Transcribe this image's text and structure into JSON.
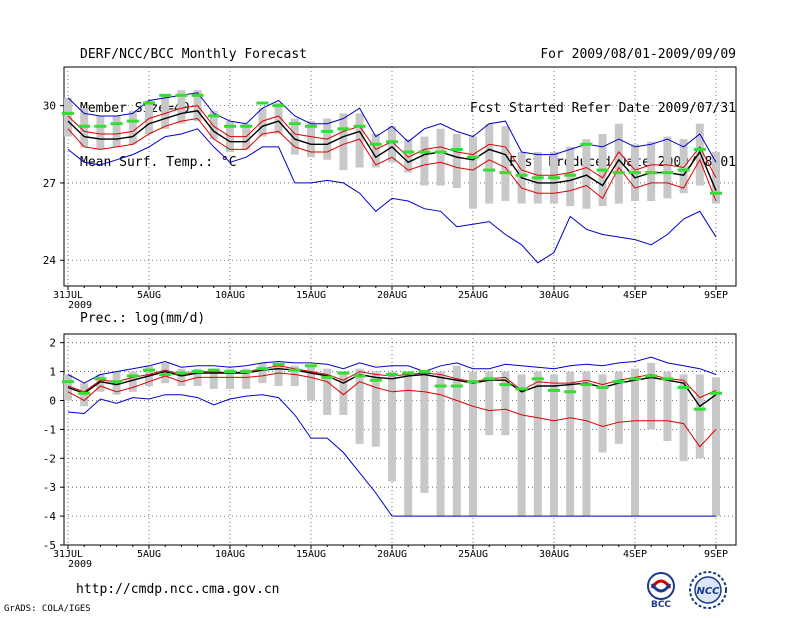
{
  "header": {
    "title": "DERF/NCC/BCC Monthly Forecast",
    "member": "Member Size=40",
    "variable": "Mean Surf. Temp.: °C",
    "period": "For 2009/08/01-2009/09/09",
    "started": "Fcst Started Refer Date 2009/07/31",
    "produced": "Fcst Produced Date 2009/08/01"
  },
  "footer": {
    "url": "http://cmdp.ncc.cma.gov.cn",
    "credit": "GrADS: COLA/IGES",
    "logo1_text": "BCC",
    "logo2_text": "NCC"
  },
  "chart_data": [
    {
      "id": "temp",
      "type": "line",
      "title": "Mean Surf. Temp.: °C",
      "ylim": [
        23,
        31.5
      ],
      "yticks": [
        24,
        27,
        30
      ],
      "xlabels": [
        "31JUL",
        "5AUG",
        "10AUG",
        "15AUG",
        "20AUG",
        "25AUG",
        "30AUG",
        "4SEP",
        "9SEP"
      ],
      "xlabel_sub": "2009",
      "days": 41,
      "series": [
        {
          "name": "max",
          "color": "#0000cc",
          "values": [
            30.3,
            29.7,
            29.6,
            29.6,
            29.7,
            30.2,
            30.3,
            30.4,
            30.5,
            29.7,
            29.4,
            29.3,
            29.9,
            30.2,
            29.6,
            29.3,
            29.3,
            29.5,
            29.9,
            28.8,
            29.2,
            28.6,
            29.1,
            29.3,
            29.0,
            28.8,
            29.3,
            29.4,
            28.2,
            28.1,
            28.1,
            28.3,
            28.5,
            28.4,
            28.7,
            28.4,
            28.5,
            28.7,
            28.4,
            28.9,
            27.8
          ]
        },
        {
          "name": "upper",
          "color": "#dd0000",
          "values": [
            29.6,
            29.0,
            28.9,
            28.9,
            29.0,
            29.5,
            29.7,
            29.9,
            30.0,
            29.2,
            28.8,
            28.8,
            29.4,
            29.6,
            28.9,
            28.8,
            28.7,
            29.0,
            29.2,
            28.3,
            28.6,
            28.0,
            28.3,
            28.4,
            28.2,
            28.1,
            28.5,
            28.4,
            27.5,
            27.3,
            27.3,
            27.4,
            27.6,
            27.2,
            28.2,
            27.5,
            27.7,
            27.7,
            27.6,
            28.4,
            27.2
          ]
        },
        {
          "name": "mean",
          "color": "#000000",
          "values": [
            29.4,
            28.8,
            28.7,
            28.7,
            28.8,
            29.3,
            29.5,
            29.7,
            29.8,
            29.0,
            28.6,
            28.6,
            29.2,
            29.4,
            28.7,
            28.5,
            28.5,
            28.8,
            29.0,
            28.0,
            28.4,
            27.8,
            28.1,
            28.2,
            28.0,
            27.9,
            28.3,
            28.1,
            27.2,
            27.0,
            27.0,
            27.1,
            27.3,
            26.9,
            27.9,
            27.2,
            27.4,
            27.4,
            27.3,
            28.2,
            26.7
          ]
        },
        {
          "name": "lower",
          "color": "#dd0000",
          "values": [
            29.1,
            28.4,
            28.3,
            28.4,
            28.5,
            28.9,
            29.2,
            29.4,
            29.5,
            28.7,
            28.3,
            28.3,
            28.9,
            29.0,
            28.4,
            28.2,
            28.2,
            28.5,
            28.7,
            27.7,
            28.0,
            27.5,
            27.7,
            27.8,
            27.6,
            27.5,
            27.9,
            27.6,
            26.8,
            26.6,
            26.6,
            26.7,
            26.9,
            26.4,
            27.6,
            26.8,
            27.0,
            27.0,
            26.8,
            27.9,
            26.3
          ]
        },
        {
          "name": "min",
          "color": "#0000cc",
          "values": [
            28.3,
            27.8,
            27.7,
            27.9,
            28.1,
            28.4,
            28.8,
            28.9,
            29.1,
            28.4,
            27.8,
            28.0,
            28.4,
            28.4,
            27.0,
            27.0,
            27.1,
            27.0,
            26.6,
            25.9,
            26.4,
            26.3,
            26.0,
            25.9,
            25.3,
            25.4,
            25.5,
            25.0,
            24.6,
            23.9,
            24.3,
            25.7,
            25.2,
            25.0,
            24.9,
            24.8,
            24.6,
            25.0,
            25.6,
            25.9,
            24.9
          ]
        }
      ],
      "box_low": [
        28.8,
        28.4,
        28.3,
        28.4,
        28.5,
        28.9,
        29.1,
        29.3,
        29.4,
        28.7,
        28.2,
        28.3,
        28.8,
        28.9,
        28.1,
        28.0,
        27.9,
        27.5,
        27.6,
        27.6,
        27.8,
        27.4,
        26.9,
        26.9,
        26.8,
        26.0,
        26.2,
        26.3,
        26.2,
        26.2,
        26.2,
        26.1,
        26.0,
        26.1,
        26.2,
        26.3,
        26.3,
        26.4,
        26.6,
        26.9,
        26.2
      ],
      "box_high": [
        30.3,
        29.9,
        29.6,
        29.6,
        29.8,
        30.2,
        30.4,
        30.6,
        30.6,
        29.8,
        29.4,
        29.3,
        29.9,
        30.1,
        29.5,
        29.4,
        29.5,
        29.7,
        29.7,
        28.9,
        29.2,
        28.7,
        28.8,
        29.1,
        28.9,
        28.8,
        29.3,
        29.2,
        28.2,
        28.2,
        28.2,
        28.4,
        28.7,
        28.9,
        29.3,
        28.5,
        28.6,
        28.8,
        28.7,
        29.3,
        28.2
      ],
      "green": [
        29.7,
        29.2,
        29.2,
        29.3,
        29.4,
        30.1,
        30.4,
        30.4,
        30.4,
        29.6,
        29.2,
        29.2,
        30.1,
        30.0,
        29.3,
        29.2,
        29.0,
        29.1,
        29.2,
        28.5,
        28.6,
        28.2,
        28.2,
        28.2,
        28.3,
        28.0,
        27.5,
        27.4,
        27.3,
        27.2,
        27.2,
        27.3,
        28.5,
        27.5,
        27.4,
        27.4,
        27.4,
        27.4,
        27.5,
        28.3,
        26.6
      ]
    },
    {
      "id": "prec",
      "type": "line",
      "title": "Prec.: log(mm/d)",
      "ylim": [
        -5,
        2.3
      ],
      "yticks": [
        -5,
        -4,
        -3,
        -2,
        -1,
        0,
        1,
        2
      ],
      "xlabels": [
        "31JUL",
        "5AUG",
        "10AUG",
        "15AUG",
        "20AUG",
        "25AUG",
        "30AUG",
        "4SEP",
        "9SEP"
      ],
      "xlabel_sub": "2009",
      "days": 41,
      "series": [
        {
          "name": "max",
          "color": "#0000cc",
          "values": [
            0.9,
            0.6,
            0.9,
            1.0,
            1.1,
            1.2,
            1.35,
            1.15,
            1.2,
            1.2,
            1.15,
            1.2,
            1.3,
            1.35,
            1.3,
            1.3,
            1.25,
            1.1,
            1.3,
            1.15,
            1.2,
            1.2,
            1.0,
            1.2,
            1.3,
            1.1,
            1.1,
            1.25,
            1.2,
            1.15,
            1.1,
            1.2,
            1.25,
            1.2,
            1.3,
            1.35,
            1.5,
            1.3,
            1.2,
            1.1,
            0.9
          ]
        },
        {
          "name": "upper",
          "color": "#dd0000",
          "values": [
            0.5,
            0.3,
            0.7,
            0.65,
            0.8,
            0.9,
            1.05,
            0.9,
            1.0,
            1.0,
            0.95,
            1.0,
            1.1,
            1.2,
            1.1,
            1.0,
            0.9,
            0.7,
            1.0,
            0.9,
            0.85,
            0.9,
            0.95,
            0.9,
            0.75,
            0.65,
            0.75,
            0.8,
            0.35,
            0.65,
            0.6,
            0.6,
            0.7,
            0.55,
            0.7,
            0.8,
            0.9,
            0.75,
            0.7,
            0.1,
            0.35
          ]
        },
        {
          "name": "mean",
          "color": "#000000",
          "values": [
            0.45,
            0.25,
            0.65,
            0.55,
            0.7,
            0.85,
            1.0,
            0.85,
            0.95,
            0.95,
            0.95,
            0.95,
            1.05,
            1.1,
            1.05,
            0.95,
            0.85,
            0.6,
            0.9,
            0.8,
            0.75,
            0.85,
            0.9,
            0.8,
            0.7,
            0.6,
            0.7,
            0.7,
            0.3,
            0.5,
            0.5,
            0.55,
            0.6,
            0.45,
            0.6,
            0.7,
            0.8,
            0.7,
            0.6,
            -0.2,
            0.2
          ]
        },
        {
          "name": "lower",
          "color": "#dd0000",
          "values": [
            0.3,
            0.0,
            0.5,
            0.3,
            0.45,
            0.65,
            0.85,
            0.65,
            0.8,
            0.8,
            0.8,
            0.8,
            0.85,
            0.95,
            0.9,
            0.8,
            0.65,
            0.2,
            0.65,
            0.45,
            0.3,
            0.35,
            0.3,
            0.2,
            0.0,
            -0.2,
            -0.35,
            -0.3,
            -0.5,
            -0.6,
            -0.7,
            -0.6,
            -0.7,
            -0.9,
            -0.75,
            -0.7,
            -0.7,
            -0.7,
            -0.8,
            -1.6,
            -1.0
          ]
        },
        {
          "name": "min",
          "color": "#0000cc",
          "values": [
            -0.4,
            -0.45,
            0.05,
            -0.1,
            0.1,
            0.05,
            0.2,
            0.2,
            0.1,
            -0.15,
            0.05,
            0.15,
            0.2,
            0.1,
            -0.5,
            -1.3,
            -1.3,
            -1.8,
            -2.5,
            -3.2,
            -4.0,
            -4.0,
            -4.0,
            -4.0,
            -4.0,
            -4.0,
            -4.0,
            -4.0,
            -4.0,
            -4.0,
            -4.0,
            -4.0,
            -4.0,
            -4.0,
            -4.0,
            -4.0,
            -4.0,
            -4.0,
            -4.0,
            -4.0,
            -4.0
          ]
        }
      ],
      "box_low": [
        0.0,
        -0.2,
        0.3,
        0.2,
        0.3,
        0.5,
        0.6,
        0.5,
        0.5,
        0.4,
        0.4,
        0.4,
        0.6,
        0.5,
        0.5,
        0.0,
        -0.5,
        -0.5,
        -1.5,
        -1.6,
        -2.8,
        -4.0,
        -3.2,
        -4.0,
        -4.0,
        -4.0,
        -1.2,
        -1.2,
        -4.0,
        -4.0,
        -4.0,
        -4.0,
        -4.0,
        -1.8,
        -1.5,
        -4.0,
        -1.0,
        -1.4,
        -2.1,
        -2.0,
        -4.0
      ],
      "box_high": [
        0.9,
        0.6,
        0.9,
        1.0,
        1.0,
        1.2,
        1.3,
        1.1,
        1.1,
        1.1,
        1.1,
        1.1,
        1.3,
        1.3,
        1.2,
        1.2,
        1.1,
        1.0,
        1.1,
        1.0,
        1.0,
        1.0,
        1.0,
        1.0,
        1.2,
        1.0,
        1.0,
        1.0,
        0.9,
        1.0,
        0.9,
        1.0,
        1.0,
        0.9,
        1.0,
        1.1,
        1.3,
        1.0,
        0.9,
        0.9,
        0.8
      ],
      "green": [
        0.65,
        0.25,
        0.75,
        0.65,
        0.85,
        1.05,
        0.9,
        0.95,
        1.0,
        1.05,
        1.0,
        1.0,
        1.1,
        1.25,
        1.05,
        1.2,
        0.8,
        0.95,
        0.85,
        0.7,
        0.9,
        0.95,
        1.0,
        0.5,
        0.5,
        0.65,
        0.75,
        0.55,
        0.4,
        0.75,
        0.35,
        0.3,
        0.55,
        0.45,
        0.65,
        0.75,
        0.85,
        0.75,
        0.45,
        -0.3,
        0.25
      ]
    }
  ]
}
